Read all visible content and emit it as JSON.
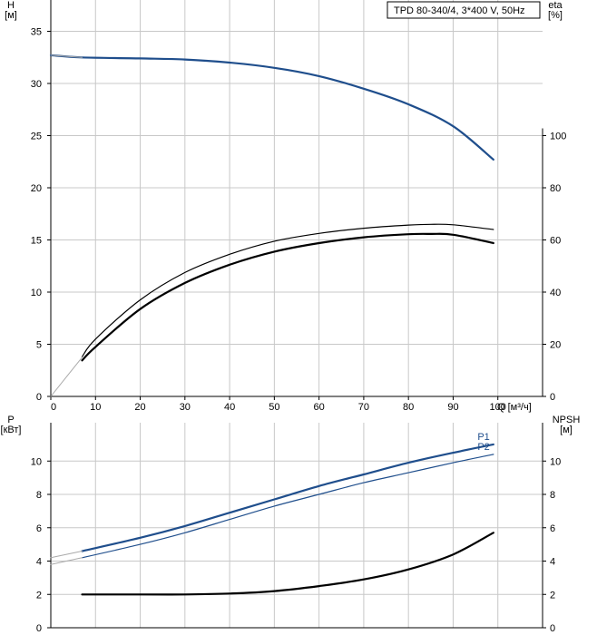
{
  "chart_data": [
    {
      "type": "line",
      "title": "TPD 80-340/4, 3*400 V, 50Hz",
      "xlabel": "Q [м³/ч]",
      "ylabel_left": "H\n[м]",
      "ylabel_right": "eta\n[%]",
      "xlim": [
        0,
        110
      ],
      "ylim_left": [
        0,
        38
      ],
      "ylim_right": [
        0,
        152
      ],
      "x_ticks": [
        0,
        10,
        20,
        30,
        40,
        50,
        60,
        70,
        80,
        90,
        100
      ],
      "y_ticks_left": [
        0,
        5,
        10,
        15,
        20,
        25,
        30,
        35
      ],
      "y_ticks_right": [
        0,
        20,
        40,
        60,
        80,
        100
      ],
      "grid": true,
      "series": [
        {
          "axis": "left",
          "color": "#1f4e8c",
          "width": 2.2,
          "x": [
            0,
            7,
            20,
            30,
            40,
            50,
            60,
            70,
            80,
            90,
            99
          ],
          "y": [
            32.7,
            32.5,
            32.4,
            32.3,
            32.0,
            31.5,
            30.7,
            29.5,
            28.0,
            25.9,
            22.7
          ]
        },
        {
          "axis": "left",
          "color": "#aaaaaa",
          "width": 1,
          "x": [
            0,
            7
          ],
          "y": [
            32.7,
            32.5
          ]
        },
        {
          "axis": "right",
          "color": "#000000",
          "width": 1.2,
          "x": [
            7,
            10,
            20,
            30,
            40,
            50,
            60,
            70,
            80,
            85,
            90,
            99
          ],
          "y": [
            15.2,
            22,
            37,
            47.5,
            54.5,
            59.5,
            62.5,
            64.5,
            65.7,
            66,
            65.8,
            64
          ]
        },
        {
          "axis": "right",
          "color": "#000000",
          "width": 2.2,
          "x": [
            7,
            10,
            20,
            30,
            40,
            50,
            60,
            70,
            80,
            85,
            90,
            99
          ],
          "y": [
            13.8,
            19,
            33.5,
            43.5,
            50.5,
            55.5,
            58.8,
            61,
            62.2,
            62.3,
            62,
            58.8
          ]
        },
        {
          "axis": "right",
          "color": "#aaaaaa",
          "width": 1,
          "x": [
            0,
            7
          ],
          "y": [
            0,
            15
          ]
        }
      ]
    },
    {
      "type": "line",
      "ylabel_left": "P\n[кВт]",
      "ylabel_right": "NPSH\n[м]",
      "xlim": [
        0,
        110
      ],
      "ylim_left": [
        0,
        12.3
      ],
      "ylim_right": [
        0,
        12.3
      ],
      "y_ticks_left": [
        0,
        2,
        4,
        6,
        8,
        10
      ],
      "y_ticks_right": [
        0,
        2,
        4,
        6,
        8,
        10
      ],
      "grid": true,
      "series": [
        {
          "name": "P1",
          "axis": "left",
          "color": "#1f4e8c",
          "width": 2.2,
          "x": [
            7,
            20,
            30,
            40,
            50,
            60,
            70,
            80,
            90,
            99
          ],
          "y": [
            4.6,
            5.4,
            6.1,
            6.9,
            7.7,
            8.5,
            9.2,
            9.9,
            10.5,
            11.0
          ]
        },
        {
          "name": "P2",
          "axis": "left",
          "color": "#1f4e8c",
          "width": 1.2,
          "x": [
            7,
            20,
            30,
            40,
            50,
            60,
            70,
            80,
            90,
            99
          ],
          "y": [
            4.2,
            5.0,
            5.7,
            6.5,
            7.3,
            8.0,
            8.7,
            9.3,
            9.9,
            10.4
          ]
        },
        {
          "axis": "left",
          "color": "#aaaaaa",
          "width": 1,
          "x": [
            0,
            7
          ],
          "y": [
            4.2,
            4.6
          ]
        },
        {
          "axis": "left",
          "color": "#aaaaaa",
          "width": 1,
          "x": [
            0,
            7
          ],
          "y": [
            3.8,
            4.2
          ]
        },
        {
          "axis": "right",
          "color": "#000000",
          "width": 2.2,
          "x": [
            7,
            20,
            30,
            40,
            50,
            60,
            70,
            80,
            90,
            99
          ],
          "y": [
            2.0,
            2.0,
            2.0,
            2.05,
            2.2,
            2.5,
            2.9,
            3.5,
            4.4,
            5.7
          ]
        }
      ]
    }
  ]
}
